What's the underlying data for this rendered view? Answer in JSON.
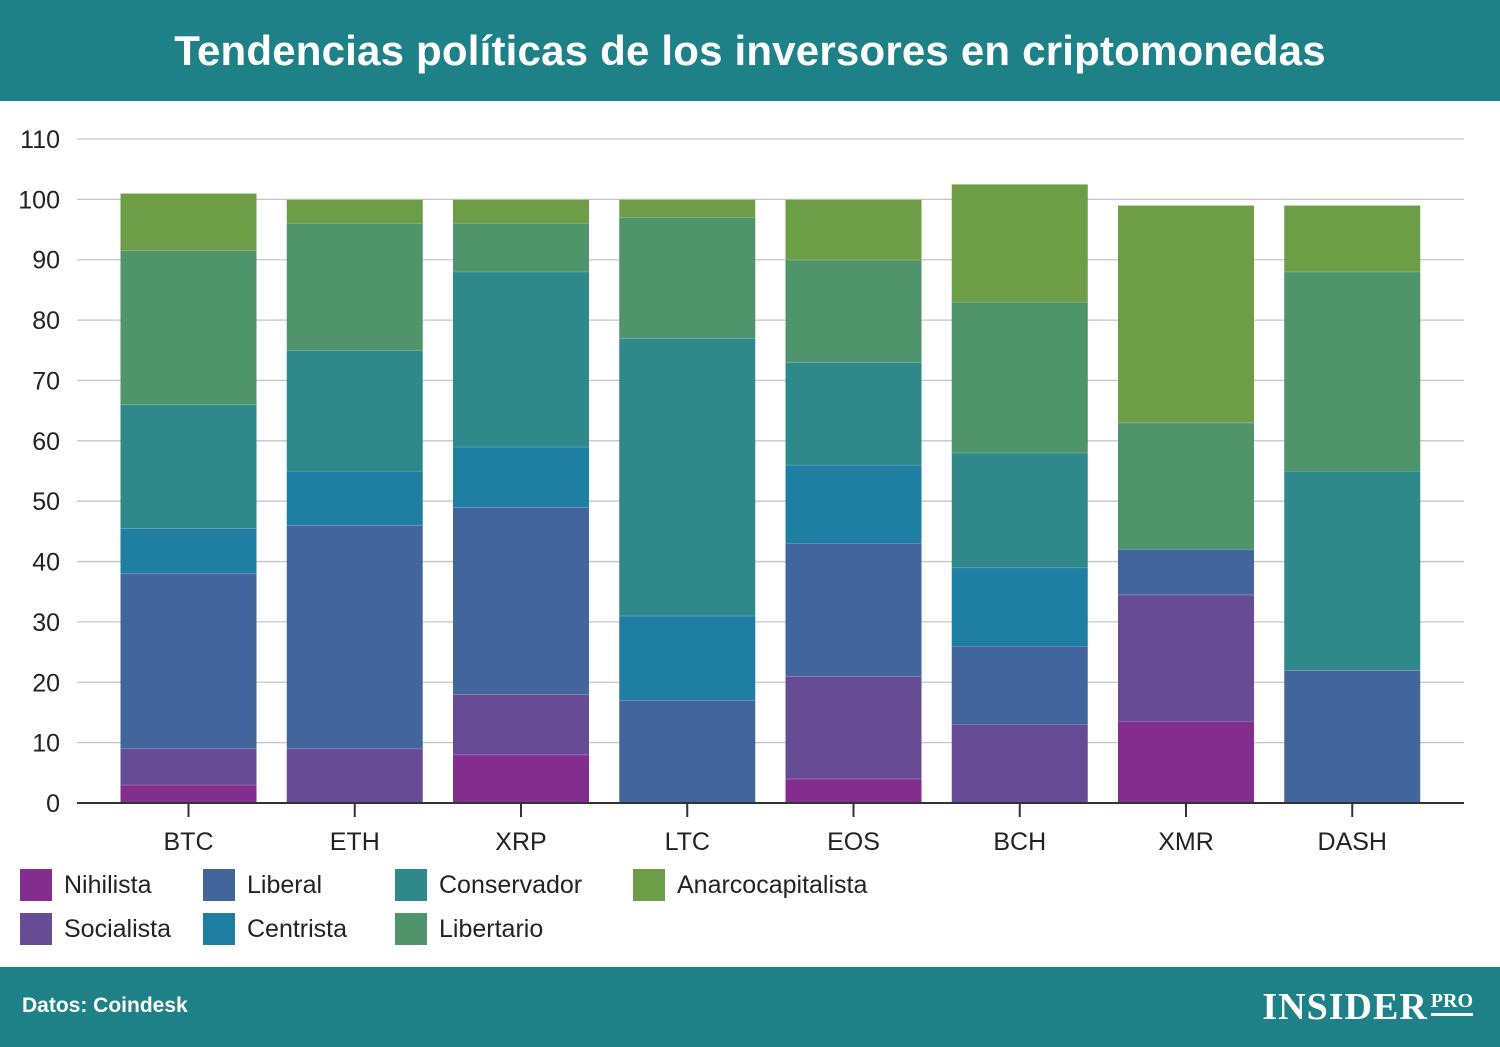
{
  "title": "Tendencias políticas de los inversores en criptomonedas",
  "footer": {
    "source": "Datos: Coindesk",
    "logo_main": "INSIDER",
    "logo_sub": "PRO"
  },
  "colors": {
    "header_bg": "#1e8187",
    "Nihilista": "#832d8e",
    "Socialista": "#664c94",
    "Liberal": "#42669b",
    "Centrista": "#1e7fa2",
    "Conservador": "#2f898b",
    "Libertario": "#4f946b",
    "Anarcocapitalista": "#6d9e47"
  },
  "chart_data": {
    "type": "bar",
    "stacked": true,
    "title": "Tendencias políticas de los inversores en criptomonedas",
    "categories": [
      "BTC",
      "ETH",
      "XRP",
      "LTC",
      "EOS",
      "BCH",
      "XMR",
      "DASH"
    ],
    "series": [
      {
        "name": "Nihilista",
        "values": [
          3,
          0,
          8,
          0,
          4,
          0,
          13.5,
          0
        ]
      },
      {
        "name": "Socialista",
        "values": [
          6,
          9,
          10,
          0,
          17,
          13,
          21,
          0
        ]
      },
      {
        "name": "Liberal",
        "values": [
          29,
          37,
          31,
          17,
          22,
          13,
          7.5,
          22
        ]
      },
      {
        "name": "Centrista",
        "values": [
          7.5,
          9,
          10,
          14,
          13,
          13,
          0,
          0
        ]
      },
      {
        "name": "Conservador",
        "values": [
          20.5,
          20,
          29,
          46,
          17,
          19,
          0,
          33
        ]
      },
      {
        "name": "Libertario",
        "values": [
          25.5,
          21,
          8,
          20,
          17,
          25,
          21,
          33
        ]
      },
      {
        "name": "Anarcocapitalista",
        "values": [
          9.5,
          4,
          4,
          3,
          10,
          19.5,
          36,
          11
        ]
      }
    ],
    "xlabel": "",
    "ylabel": "",
    "ylim": [
      0,
      110
    ],
    "yticks": [
      0,
      10,
      20,
      30,
      40,
      50,
      60,
      70,
      80,
      90,
      100,
      110
    ],
    "grid": true,
    "legend": "bottom-left"
  },
  "legend": [
    {
      "label": "Nihilista",
      "color": "#832d8e"
    },
    {
      "label": "Liberal",
      "color": "#42669b"
    },
    {
      "label": "Conservador",
      "color": "#2f898b"
    },
    {
      "label": "Anarcocapitalista",
      "color": "#6d9e47"
    },
    {
      "label": "Socialista",
      "color": "#664c94"
    },
    {
      "label": "Centrista",
      "color": "#1e7fa2"
    },
    {
      "label": "Libertario",
      "color": "#4f946b"
    }
  ]
}
